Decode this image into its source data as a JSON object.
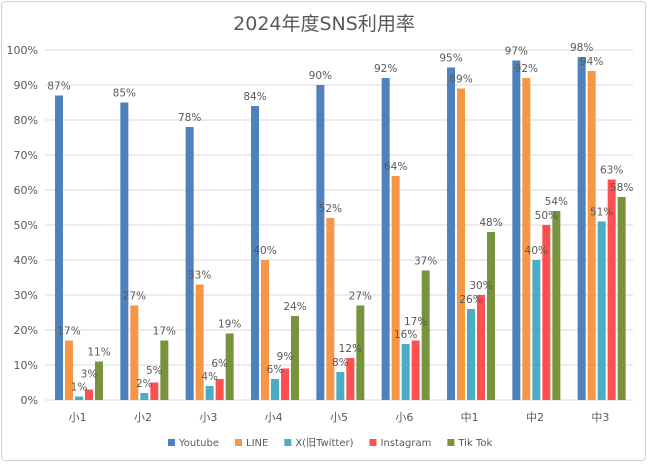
{
  "chart_data": {
    "type": "bar",
    "title": "2024年度SNS利用率",
    "categories": [
      "小1",
      "小2",
      "小3",
      "小4",
      "小5",
      "小6",
      "中1",
      "中2",
      "中3"
    ],
    "series": [
      {
        "name": "Youtube",
        "color": "#4f81bd",
        "values": [
          87,
          85,
          78,
          84,
          90,
          92,
          95,
          97,
          98
        ]
      },
      {
        "name": "LINE",
        "color": "#f79646",
        "values": [
          17,
          27,
          33,
          40,
          52,
          64,
          89,
          92,
          94
        ]
      },
      {
        "name": "X(旧Twitter)",
        "color": "#4bacc6",
        "values": [
          1,
          2,
          4,
          6,
          8,
          16,
          26,
          40,
          51
        ]
      },
      {
        "name": "Instagram",
        "color": "#ff5050",
        "values": [
          3,
          5,
          6,
          9,
          12,
          17,
          30,
          50,
          63
        ]
      },
      {
        "name": "Tik Tok",
        "color": "#77933c",
        "values": [
          11,
          17,
          19,
          24,
          27,
          37,
          48,
          54,
          58
        ]
      }
    ],
    "ylim": [
      0,
      100
    ],
    "yticks": [
      "0%",
      "10%",
      "20%",
      "30%",
      "40%",
      "50%",
      "60%",
      "70%",
      "80%",
      "90%",
      "100%"
    ],
    "grid": true,
    "legend": "bottom",
    "data_labels": true
  }
}
